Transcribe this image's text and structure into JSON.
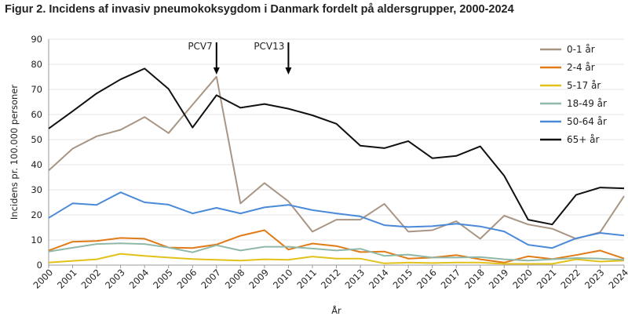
{
  "chart_data": {
    "type": "line",
    "title": "Figur 2. Incidens af invasiv pneumokoksygdom i Danmark fordelt på aldersgrupper, 2000-2024",
    "xlabel": "År",
    "ylabel": "Incidens pr. 100.000 personer",
    "ylim": [
      0,
      90
    ],
    "yticks": [
      0,
      10,
      20,
      30,
      40,
      50,
      60,
      70,
      80,
      90
    ],
    "grid": true,
    "legend": "top-right",
    "x": [
      "2000",
      "2001",
      "2002",
      "2003",
      "2004",
      "2005",
      "2006",
      "2007",
      "2008",
      "2009",
      "2010",
      "2011",
      "2012",
      "2013",
      "2014",
      "2015",
      "2016",
      "2017",
      "2018",
      "2019",
      "2020",
      "2021",
      "2022",
      "2023",
      "2024"
    ],
    "annotations": [
      {
        "label": "PCV7",
        "x": "2007"
      },
      {
        "label": "PCV13",
        "x": "2010"
      }
    ],
    "series": [
      {
        "name": "0-1 år",
        "color": "#a89584",
        "values": [
          37.7,
          46.4,
          51.3,
          53.9,
          59.0,
          52.6,
          63.9,
          75.1,
          24.6,
          32.7,
          25.4,
          13.3,
          18.1,
          18.1,
          24.4,
          13.3,
          13.9,
          17.5,
          10.5,
          19.7,
          16.2,
          14.5,
          10.5,
          13.1,
          27.5
        ]
      },
      {
        "name": "2-4 år",
        "color": "#e07b17",
        "values": [
          5.8,
          9.3,
          9.6,
          10.8,
          10.5,
          7.0,
          6.8,
          8.2,
          11.7,
          13.9,
          6.2,
          8.6,
          7.6,
          5.2,
          5.4,
          2.6,
          3.0,
          4.0,
          2.3,
          1.0,
          3.5,
          2.4,
          4.0,
          5.8,
          2.6
        ]
      },
      {
        "name": "5-17 år",
        "color": "#e2c21a",
        "values": [
          1.0,
          1.7,
          2.3,
          4.5,
          3.7,
          3.0,
          2.4,
          2.1,
          1.8,
          2.3,
          2.1,
          3.4,
          2.6,
          2.6,
          0.7,
          1.0,
          0.8,
          1.0,
          1.0,
          0.5,
          0.5,
          0.5,
          2.3,
          1.4,
          1.8
        ]
      },
      {
        "name": "18-49 år",
        "color": "#8fb8a8",
        "values": [
          5.4,
          6.9,
          8.4,
          8.7,
          8.4,
          7.0,
          5.1,
          7.9,
          5.8,
          7.3,
          7.3,
          6.6,
          5.8,
          6.5,
          3.7,
          4.2,
          3.0,
          3.0,
          3.2,
          2.3,
          1.8,
          2.3,
          2.8,
          2.6,
          2.1
        ]
      },
      {
        "name": "50-64 år",
        "color": "#4a8ad8",
        "values": [
          18.8,
          24.6,
          24.0,
          29.0,
          25.0,
          24.1,
          20.6,
          22.8,
          20.6,
          23.0,
          24.0,
          21.9,
          20.6,
          19.4,
          15.9,
          15.2,
          15.5,
          16.5,
          15.4,
          13.4,
          8.1,
          6.8,
          10.7,
          12.8,
          11.8
        ]
      },
      {
        "name": "65+ år",
        "color": "#111111",
        "values": [
          54.4,
          61.3,
          68.4,
          74.0,
          78.3,
          70.2,
          54.8,
          67.7,
          62.7,
          64.2,
          62.3,
          59.7,
          56.3,
          47.6,
          46.6,
          49.4,
          42.6,
          43.5,
          47.3,
          35.6,
          18.1,
          16.2,
          28.0,
          30.9,
          30.6
        ]
      }
    ]
  }
}
